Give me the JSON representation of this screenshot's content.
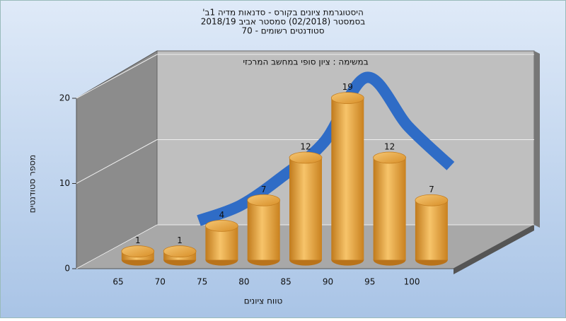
{
  "chart_data": {
    "type": "bar",
    "title": [
      "היסטוגרמת ציונים בקורס - סדנאות מדיה 1ב'",
      "בסמסטר  (02/2018)  סמסטר אביב 2018/19",
      "סטודנטים רשומים - 70"
    ],
    "subtitle": "במשימה : ציון סופי במחשב המרכזי",
    "x_label": "טווח ציונים",
    "y_label": "מספר סטודנטים",
    "categories": [
      "65",
      "70",
      "75",
      "80",
      "85",
      "90",
      "95",
      "100"
    ],
    "values": [
      1,
      1,
      4,
      7,
      12,
      19,
      12,
      7
    ],
    "color": "#e9a53e",
    "curve": {
      "color": "#2f6cc6",
      "values": [
        0.5,
        2.3,
        5.7,
        9.8,
        17.3,
        11.5,
        6.9,
        null
      ]
    },
    "ylim": [
      0,
      20
    ],
    "yticks": [
      0,
      10,
      20
    ],
    "grid": true
  }
}
